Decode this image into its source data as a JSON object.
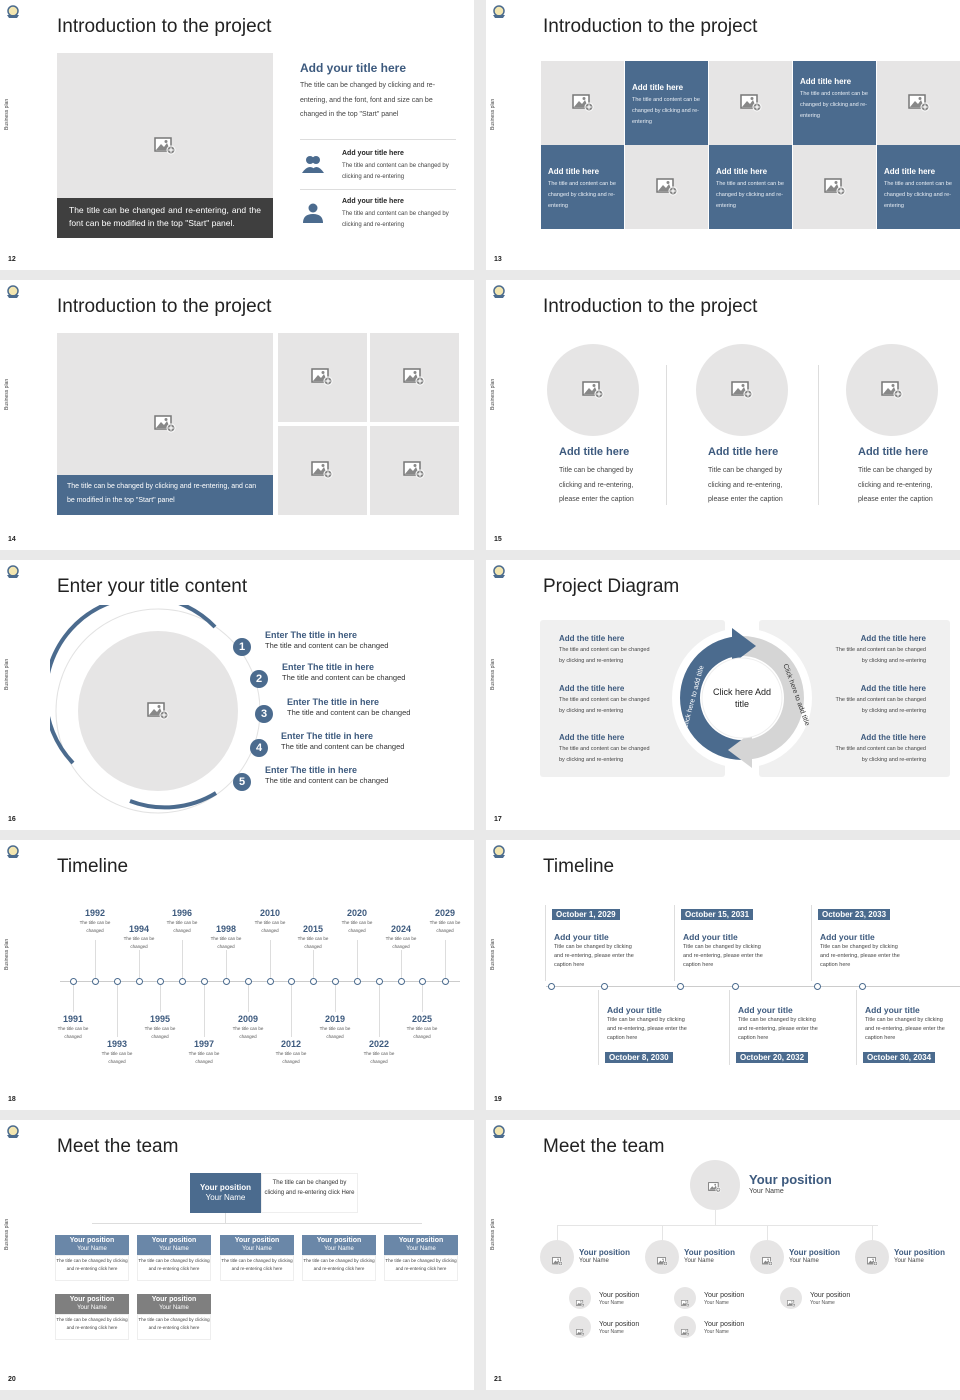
{
  "common": {
    "side_label": "Business plan",
    "accent": "#4b6b8e",
    "dark_caption": "#3f3f3f",
    "placeholder": "#e6e5e5"
  },
  "s12": {
    "num": "12",
    "title": "Introduction to the project",
    "caption": "The title can be changed and re-entering, and the font can be modified in the top \"Start\" panel.",
    "heading": "Add your title here",
    "body": "The title can be changed by clicking and re-entering, and the font, font and size can be changed in the top \"Start\" panel",
    "items": [
      {
        "icon": "users-icon",
        "title": "Add your title here",
        "text": "The title and content can be changed by clicking and re-entering"
      },
      {
        "icon": "user-icon",
        "title": "Add your title here",
        "text": "The title and content can be changed by clicking and re-entering"
      }
    ]
  },
  "s13": {
    "num": "13",
    "title": "Introduction to the project",
    "tiles": [
      {
        "title": "Add title here",
        "text": "The title and content can be changed by clicking and re-entering"
      },
      {
        "title": "Add title here",
        "text": "The title and content can be changed by clicking and re-entering"
      },
      {
        "title": "Add title here",
        "text": "The title and content can be changed by clicking and re-entering"
      },
      {
        "title": "Add title here",
        "text": "The title and content can be changed by clicking and re-entering"
      },
      {
        "title": "Add title here",
        "text": "The title and content can be changed by clicking and re-entering"
      }
    ]
  },
  "s14": {
    "num": "14",
    "title": "Introduction to the project",
    "caption": "The title can be changed by clicking and re-entering, and can be modified in the top \"Start\" panel"
  },
  "s15": {
    "num": "15",
    "title": "Introduction to the project",
    "cols": [
      {
        "title": "Add title here",
        "text": "Title can be changed by clicking and re-entering, please enter the caption"
      },
      {
        "title": "Add title here",
        "text": "Title can be changed by clicking and re-entering, please enter the caption"
      },
      {
        "title": "Add title here",
        "text": "Title can be changed by clicking and re-entering, please enter the caption"
      }
    ]
  },
  "s16": {
    "num": "16",
    "title": "Enter your title content",
    "items": [
      {
        "n": "1",
        "title": "Enter The title in here",
        "text": "The title and content can be changed"
      },
      {
        "n": "2",
        "title": "Enter The title in here",
        "text": "The title and content can be changed"
      },
      {
        "n": "3",
        "title": "Enter The title in here",
        "text": "The title and content can be changed"
      },
      {
        "n": "4",
        "title": "Enter The title in here",
        "text": "The title and content can be changed"
      },
      {
        "n": "5",
        "title": "Enter The title in here",
        "text": "The title and content can be changed"
      }
    ]
  },
  "s17": {
    "num": "17",
    "title": "Project Diagram",
    "center": "Click here Add title",
    "arc_left": "Click here to add title",
    "arc_right": "Click here to add title",
    "items": [
      {
        "title": "Add the title here",
        "text": "The title and content can be changed by clicking and re-entering"
      },
      {
        "title": "Add the title here",
        "text": "The title and content can be changed by clicking and re-entering"
      },
      {
        "title": "Add the title here",
        "text": "The title and content can be changed by clicking and re-entering"
      },
      {
        "title": "Add the title here",
        "text": "The title and content can be changed by clicking and re-entering"
      },
      {
        "title": "Add the title here",
        "text": "The title and content can be changed by clicking and re-entering"
      },
      {
        "title": "Add the title here",
        "text": "The title and content can be changed by clicking and re-entering"
      }
    ]
  },
  "s18": {
    "num": "18",
    "title": "Timeline",
    "caption": "The title can be changed",
    "years": [
      "1991",
      "1992",
      "1993",
      "1994",
      "1995",
      "1996",
      "1997",
      "1998",
      "2009",
      "2010",
      "2012",
      "2015",
      "2019",
      "2020",
      "2022",
      "2024",
      "2025",
      "2029"
    ]
  },
  "s19": {
    "num": "19",
    "title": "Timeline",
    "events": [
      {
        "date": "October 1, 2029",
        "title": "Add your title",
        "text": "Title can be changed by clicking and re-entering, please enter the caption here"
      },
      {
        "date": "October 8, 2030",
        "title": "Add your title",
        "text": "Title can be changed by clicking and re-entering, please enter the caption here"
      },
      {
        "date": "October 15, 2031",
        "title": "Add your title",
        "text": "Title can be changed by clicking and re-entering, please enter the caption here"
      },
      {
        "date": "October 20, 2032",
        "title": "Add your title",
        "text": "Title can be changed by clicking and re-entering, please enter the caption here"
      },
      {
        "date": "October 23, 2033",
        "title": "Add your title",
        "text": "Title can be changed by clicking and re-entering, please enter the caption here"
      },
      {
        "date": "October 30, 2034",
        "title": "Add your title",
        "text": "Title can be changed by clicking and re-entering, please enter the caption here"
      }
    ]
  },
  "s20": {
    "num": "20",
    "title": "Meet the team",
    "position": "Your position",
    "name": "Your Name",
    "text": "The title can be changed by clicking and re-entering click here",
    "top_text": "The title can be changed by clicking and re-entering click Here"
  },
  "s21": {
    "num": "21",
    "title": "Meet the team",
    "position": "Your position",
    "name": "Your Name"
  }
}
